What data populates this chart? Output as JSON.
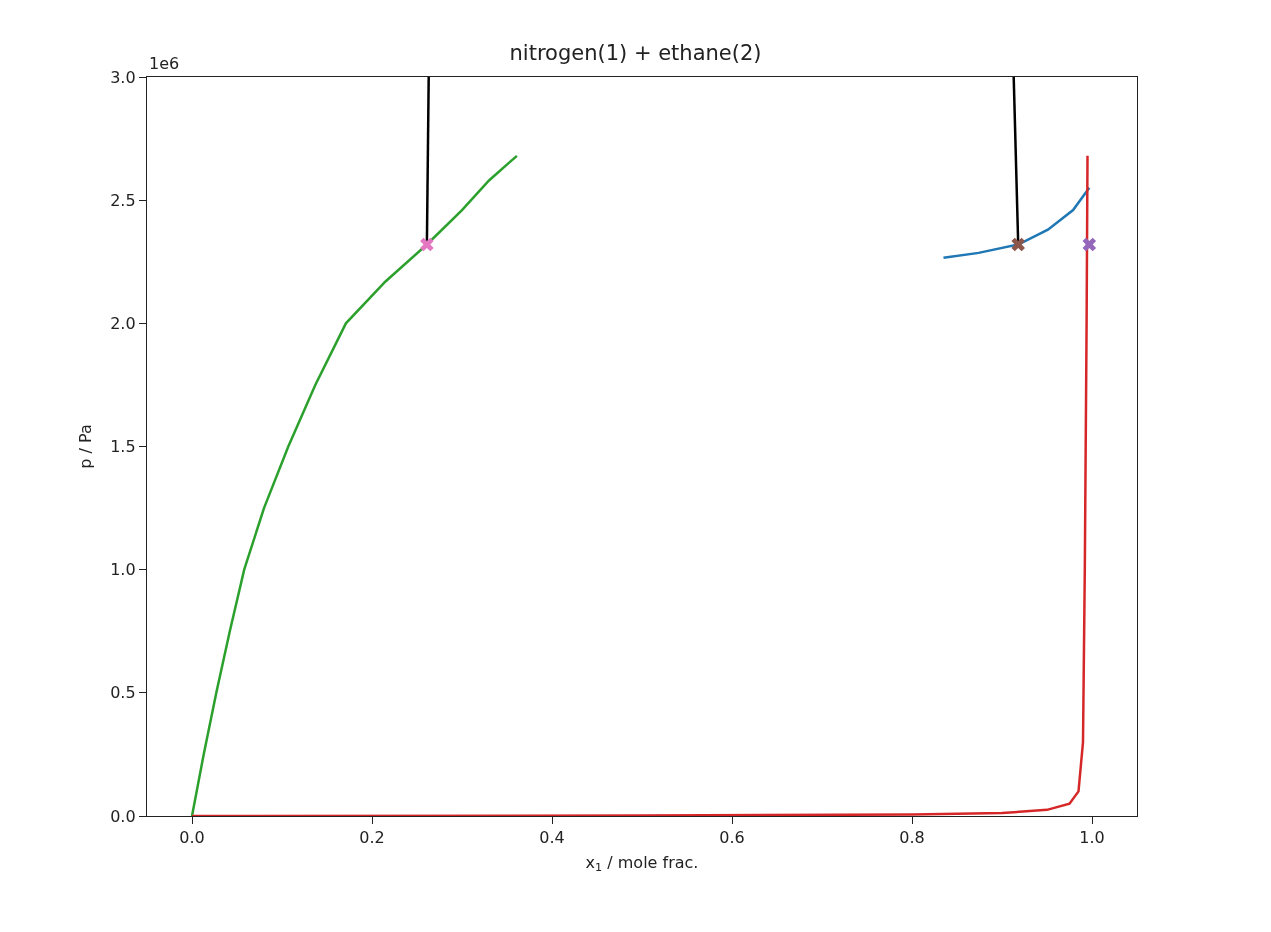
{
  "chart_data": {
    "type": "line",
    "title": "nitrogen(1) + ethane(2)",
    "xlabel": "x$_{1}$ / mole frac.",
    "ylabel": "p / Pa",
    "annotations": [
      "1e6"
    ],
    "xlim": [
      -0.05,
      1.05
    ],
    "xticks": [
      {
        "value": 0,
        "label": "0.0"
      },
      0.2,
      0.4,
      0.6,
      0.8,
      {
        "value": 1,
        "label": "1.0"
      }
    ],
    "ylim": [
      0,
      3
    ],
    "yticks": [
      {
        "value": 0,
        "label": "0.0"
      },
      0.5,
      {
        "value": 1,
        "label": "1.0"
      },
      1.5,
      {
        "value": 2,
        "label": "2.0"
      },
      2.5,
      {
        "value": 3,
        "label": "3.0"
      }
    ],
    "grid": false,
    "line_style": "solid",
    "series": [
      {
        "type": "line",
        "color": "#2ca02c",
        "x": [
          0,
          0.013,
          0.027,
          0.042,
          0.058,
          0.08,
          0.107,
          0.137,
          0.171,
          0.215,
          0.261,
          0.3,
          0.33,
          0.361
        ],
        "values": [
          0,
          0.25,
          0.5,
          0.75,
          1.0,
          1.25,
          1.5,
          1.75,
          2.0,
          2.17,
          2.32,
          2.46,
          2.58,
          2.68
        ]
      },
      {
        "type": "line",
        "color": "#1f77b4",
        "x": [
          0.835,
          0.874,
          0.918,
          0.951,
          0.979,
          0.997
        ],
        "values": [
          2.266,
          2.286,
          2.32,
          2.38,
          2.46,
          2.55
        ]
      },
      {
        "type": "line",
        "color": "#d62728",
        "x": [
          0,
          0.5,
          0.8,
          0.9,
          0.95,
          0.975,
          0.985,
          0.99,
          0.992,
          0.994,
          0.995
        ],
        "values": [
          0,
          0.002,
          0.006,
          0.012,
          0.025,
          0.05,
          0.1,
          0.3,
          1.0,
          2.0,
          2.68
        ]
      },
      {
        "type": "line",
        "color": "#000000",
        "x": [
          0.261,
          0.263
        ],
        "values": [
          2.32,
          3.0
        ]
      },
      {
        "type": "line",
        "color": "#000000",
        "x": [
          0.918,
          0.913
        ],
        "values": [
          2.32,
          3.0
        ]
      },
      {
        "type": "scatter",
        "marker": "cross",
        "color": "#e377c2",
        "x": [
          0.261
        ],
        "values": [
          2.32
        ]
      },
      {
        "type": "scatter",
        "marker": "cross",
        "color": "#8c564b",
        "x": [
          0.918
        ],
        "values": [
          2.32
        ]
      },
      {
        "type": "scatter",
        "marker": "cross",
        "color": "#9467bd",
        "x": [
          0.997
        ],
        "values": [
          2.32
        ]
      }
    ]
  }
}
